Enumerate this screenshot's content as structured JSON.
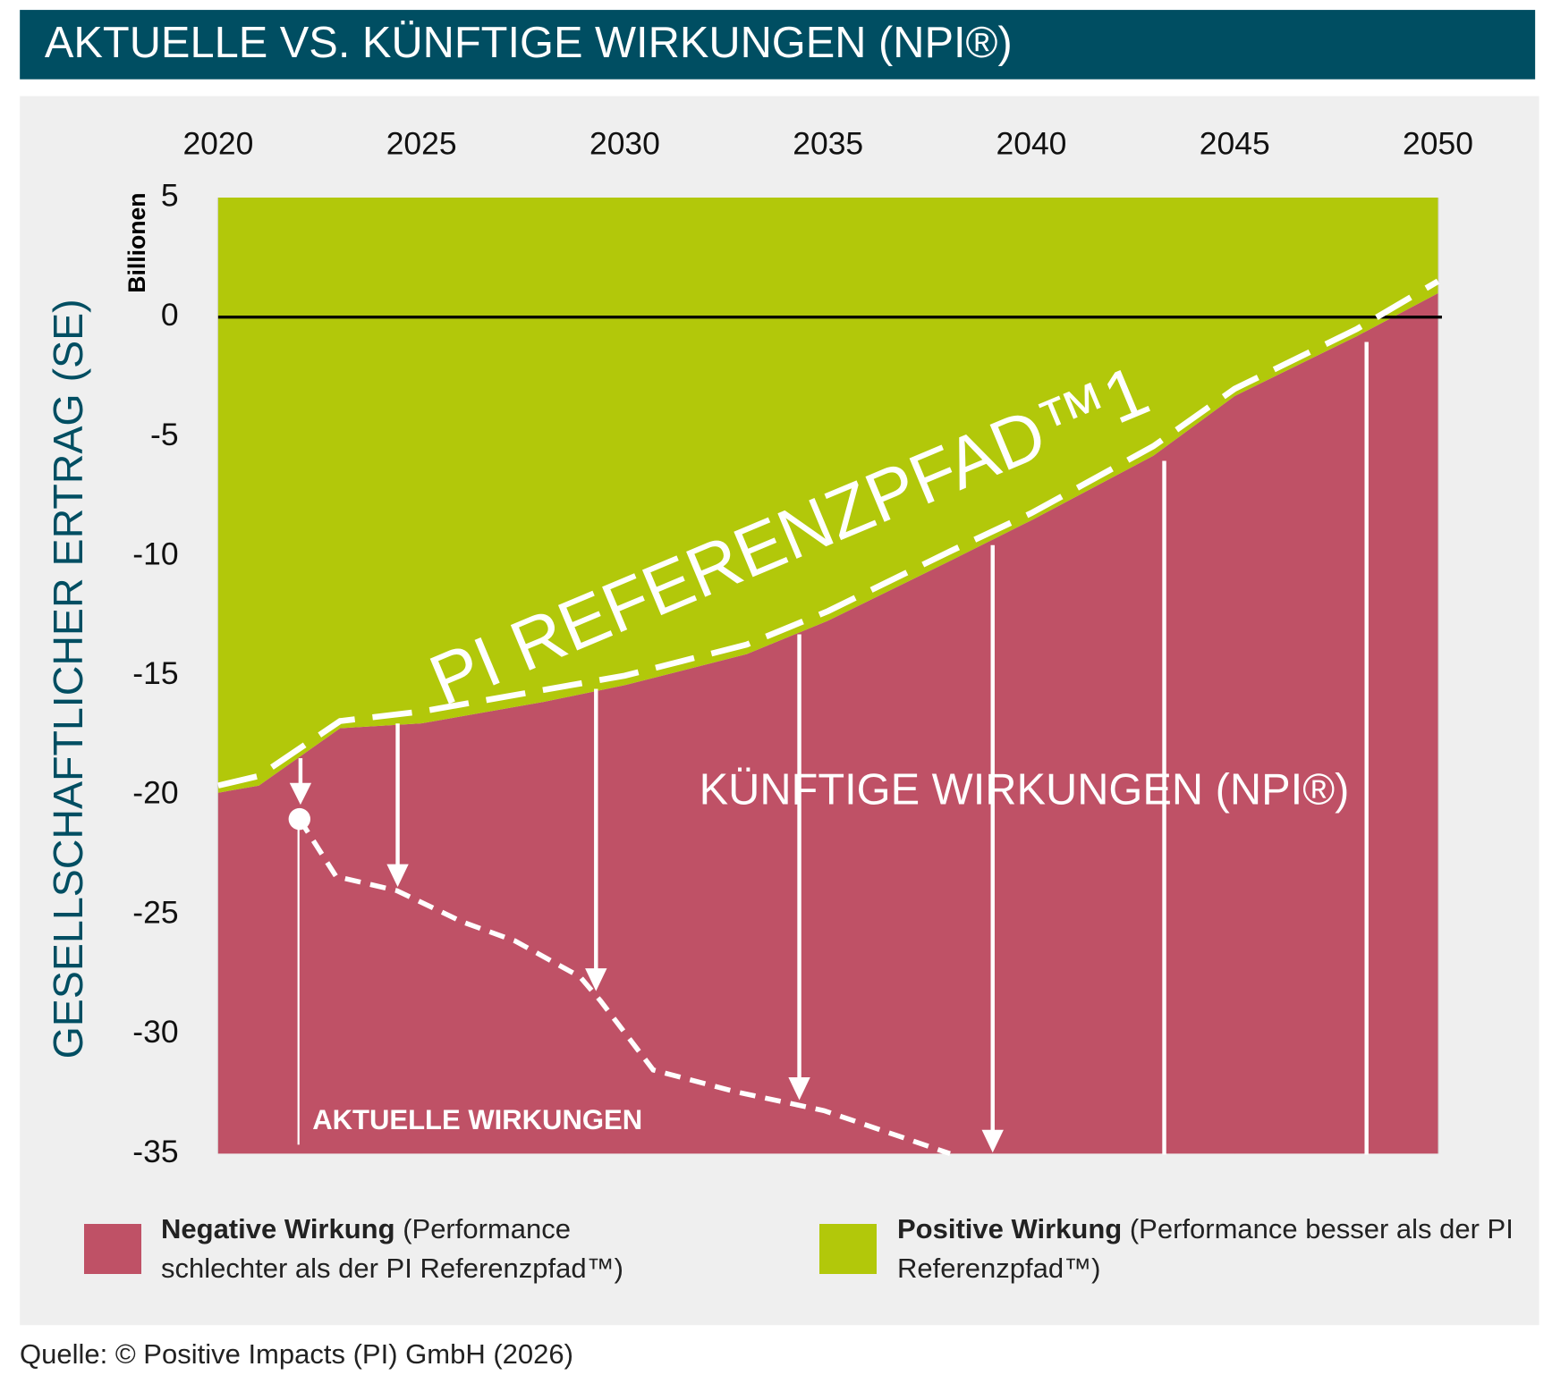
{
  "chart_data": {
    "type": "area",
    "title": "AKTUELLE VS. KÜNFTIGE WIRKUNGEN (NPI®)",
    "y_label": "GESELLSCHAFTLICHER ERTRAG (SE)",
    "unit_label": "Billionen",
    "xlim": [
      2020,
      2050
    ],
    "xticks": [
      2020,
      2025,
      2030,
      2035,
      2040,
      2045,
      2050
    ],
    "ylim": [
      -35,
      5
    ],
    "yticks": [
      -35,
      -30,
      -25,
      -20,
      -15,
      -10,
      -5,
      0,
      5
    ],
    "grid": true,
    "series": [
      {
        "name": "Negative Wirkung",
        "description": "(Performance schlechter als der PI Referenzpfad™)",
        "color": "#bf5166",
        "fill": "below"
      },
      {
        "name": "Positive Wirkung",
        "description": "(Performance besser als der PI Referenzpfad™)",
        "color": "#b2c80a",
        "fill": "above"
      }
    ],
    "boundary": {
      "x": [
        2020,
        2021,
        2023,
        2025,
        2028,
        2030,
        2033,
        2035,
        2038,
        2040,
        2043,
        2045,
        2048,
        2050
      ],
      "values": [
        -19.9,
        -19.6,
        -17.2,
        -17.0,
        -16.1,
        -15.4,
        -14.1,
        -12.7,
        -10.2,
        -8.5,
        -5.8,
        -3.3,
        -0.8,
        1.0
      ]
    },
    "reference_path": {
      "label": "PI REFERENZPFAD™1",
      "x": [
        2020,
        2021,
        2023,
        2025,
        2028,
        2030,
        2033,
        2035,
        2038,
        2040,
        2043,
        2045,
        2048,
        2050
      ],
      "values": [
        -19.6,
        -19.2,
        -16.9,
        -16.5,
        -15.6,
        -15.0,
        -13.7,
        -12.3,
        -9.8,
        -8.2,
        -5.4,
        -3.0,
        -0.5,
        1.5
      ]
    },
    "current_impacts": {
      "label": "AKTUELLE WIRKUNGEN",
      "x": [
        2022,
        2022.9,
        2024.4,
        2026,
        2027.3,
        2028.9,
        2029.4,
        2030.7,
        2032.7,
        2034.9,
        2038
      ],
      "values": [
        -21.0,
        -23.4,
        -24.0,
        -25.3,
        -26.1,
        -27.6,
        -28.6,
        -31.5,
        -32.4,
        -33.2,
        -35.0
      ]
    },
    "future_impacts_label": "KÜNFTIGE WIRKUNGEN (NPI®)",
    "source": "Quelle: © Positive Impacts (PI) GmbH (2026)"
  }
}
